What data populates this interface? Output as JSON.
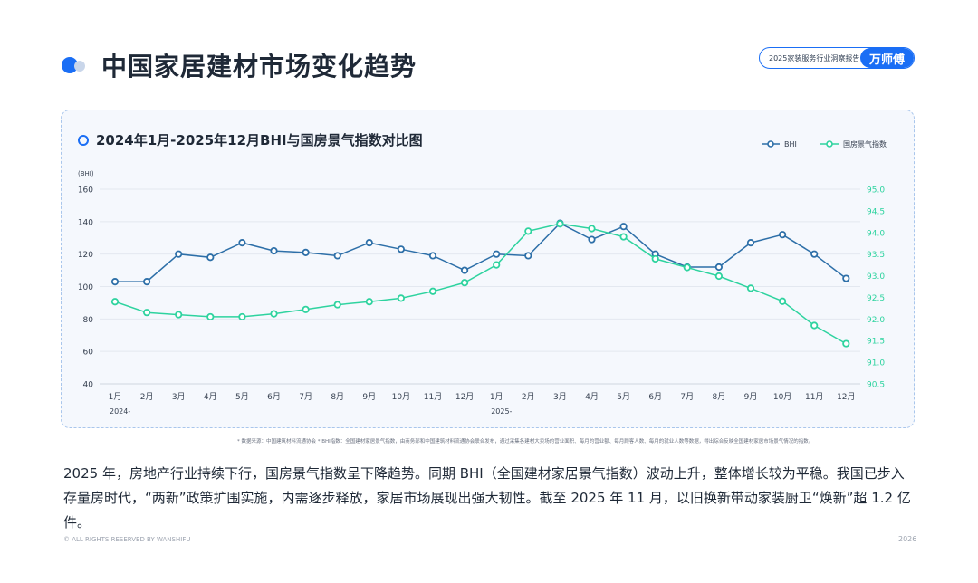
{
  "header": {
    "title": "中国家居建材市场变化趋势",
    "badge_text": "2025家装服务行业洞察报告",
    "badge_brand": "万师傅"
  },
  "chart_title": "2024年1月-2025年12月BHI与国房景气指数对比图",
  "source_note": "* 数据来源：中国建筑材料流通协会 * BHI指数：全国建材家居景气指数，由商务部和中国建筑材料流通协会联合发布，通过采集各建材大卖场的营业面积、每月的营业额、每月顾客人数、每月的就业人数等数据，得出综合反映全国建材家居市场景气情况的指数。",
  "body_text": "2025 年，房地产行业持续下行，国房景气指数呈下降趋势。同期 BHI（全国建材家居景气指数）波动上升，整体增长较为平稳。我国已步入存量房时代，“两新”政策扩围实施，内需逐步释放，家居市场展现出强大韧性。截至 2025 年 11 月，以旧换新带动家装厨卫“焕新”超 1.2 亿件。",
  "footer": {
    "copyright": "© ALL RIGHTS RESERVED BY WANSHIFU",
    "year": "2026"
  },
  "colors": {
    "accent": "#1a6ef5",
    "bhi_line": "#2d6fa8",
    "housing_line": "#2ed39f",
    "panel_bg": "#f5f8fd"
  },
  "chart_data": {
    "type": "line",
    "title": "2024年1月-2025年12月BHI与国房景气指数对比图",
    "categories": [
      "1月",
      "2月",
      "3月",
      "4月",
      "5月",
      "6月",
      "7月",
      "8月",
      "9月",
      "10月",
      "11月",
      "12月",
      "1月",
      "2月",
      "3月",
      "4月",
      "5月",
      "6月",
      "7月",
      "8月",
      "9月",
      "10月",
      "11月",
      "12月"
    ],
    "year_labels": [
      {
        "index": 0,
        "label": "2024-"
      },
      {
        "index": 12,
        "label": "2025-"
      }
    ],
    "ylabel": "(BHI)",
    "ylim": [
      40,
      160
    ],
    "yticks": [
      40,
      60,
      80,
      100,
      120,
      140,
      160
    ],
    "y2lim": [
      90.5,
      95.0
    ],
    "y2ticks": [
      "90.5",
      "91.0",
      "91.5",
      "92.0",
      "92.5",
      "93.0",
      "93.5",
      "94.0",
      "94.5",
      "95.0"
    ],
    "legend_position": "top-right",
    "series": [
      {
        "name": "BHI",
        "axis": "left",
        "color": "#2d6fa8",
        "values": [
          103,
          103,
          120,
          118,
          127,
          122,
          121,
          119,
          127,
          123,
          119,
          110,
          120,
          119,
          139,
          129,
          137,
          120,
          112,
          112,
          127,
          132,
          120,
          105
        ]
      },
      {
        "name": "国房景气指数",
        "axis": "right",
        "color": "#2ed39f",
        "values": [
          92.4,
          92.15,
          92.1,
          92.05,
          92.05,
          92.12,
          92.22,
          92.33,
          92.4,
          92.48,
          92.64,
          92.84,
          93.25,
          94.03,
          94.2,
          94.09,
          93.9,
          93.39,
          93.19,
          92.99,
          92.71,
          92.41,
          91.85,
          91.43
        ]
      }
    ]
  }
}
